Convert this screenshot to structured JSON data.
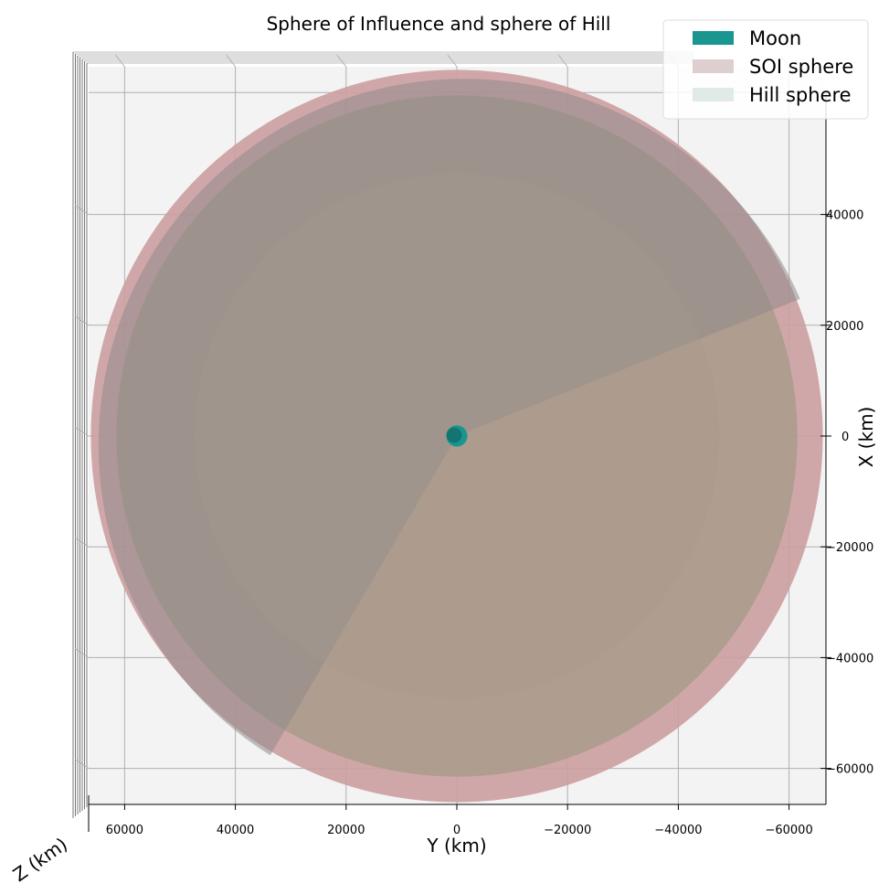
{
  "chart_data": {
    "type": "surface3d",
    "title": "Sphere of Influence and sphere of Hill",
    "xlabel": "Y (km)",
    "ylabel": "X (km)",
    "zlabel": "Z (km)",
    "y_axis_ticks": [
      60000,
      40000,
      20000,
      0,
      -20000,
      -40000,
      -60000
    ],
    "y_axis_tick_labels": [
      "60000",
      "40000",
      "20000",
      "0",
      "−20000",
      "−40000",
      "−60000"
    ],
    "x_axis_ticks": [
      40000,
      20000,
      0,
      -20000,
      -40000,
      -60000
    ],
    "x_axis_tick_labels": [
      "40000",
      "20000",
      "0",
      "−20000",
      "−40000",
      "−60000"
    ],
    "y_range": [
      66000,
      -66000
    ],
    "x_range": [
      -66000,
      66000
    ],
    "grid": true,
    "legend_position": "top-right",
    "series": [
      {
        "name": "Moon",
        "type": "sphere",
        "center": [
          0,
          0,
          0
        ],
        "radius_km": 1737,
        "color": "#199690"
      },
      {
        "name": "SOI sphere",
        "type": "sphere",
        "center": [
          0,
          0,
          0
        ],
        "radius_km": 66100,
        "color": "#ddced0"
      },
      {
        "name": "Hill sphere",
        "type": "sphere",
        "center": [
          0,
          0,
          0
        ],
        "radius_km": 61500,
        "color": "#e1ebe5"
      }
    ]
  },
  "colors": {
    "pane": "#f3f3f3",
    "grid": "#b0b0b0",
    "soi_fill": "#cc9fa1",
    "hill_fill": "#ab9c8c",
    "shadow": "#8f8b8a",
    "moon": "#199690"
  }
}
